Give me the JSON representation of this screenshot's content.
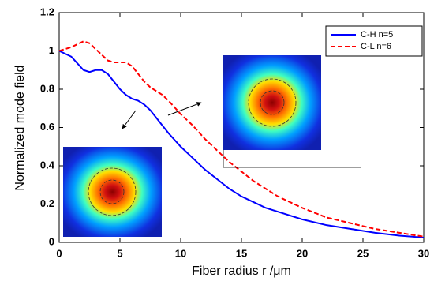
{
  "chart_data": {
    "type": "line",
    "xlabel": "Fiber radius r /μm",
    "ylabel": "Normalized mode field",
    "x": [
      0,
      1,
      2,
      2.5,
      3,
      3.5,
      4,
      4.5,
      5,
      5.5,
      6,
      6.5,
      7,
      7.5,
      8,
      8.5,
      9,
      10,
      11,
      12,
      13,
      14,
      15,
      16,
      17,
      18,
      20,
      22,
      24,
      26,
      28,
      30
    ],
    "series": [
      {
        "name": "C-H n=5",
        "color": "#0000ff",
        "dash": "solid",
        "values": [
          1,
          0.97,
          0.9,
          0.89,
          0.9,
          0.9,
          0.88,
          0.84,
          0.8,
          0.77,
          0.75,
          0.74,
          0.72,
          0.69,
          0.65,
          0.61,
          0.57,
          0.5,
          0.44,
          0.38,
          0.33,
          0.28,
          0.24,
          0.21,
          0.18,
          0.16,
          0.12,
          0.09,
          0.07,
          0.05,
          0.035,
          0.025
        ]
      },
      {
        "name": "C-L n=6",
        "color": "#ff0000",
        "dash": "dashed",
        "values": [
          1,
          1.02,
          1.05,
          1.04,
          1.01,
          0.98,
          0.95,
          0.94,
          0.94,
          0.94,
          0.92,
          0.88,
          0.84,
          0.81,
          0.79,
          0.77,
          0.74,
          0.67,
          0.61,
          0.54,
          0.48,
          0.42,
          0.37,
          0.32,
          0.28,
          0.24,
          0.18,
          0.13,
          0.1,
          0.07,
          0.05,
          0.03
        ]
      }
    ],
    "xlim": [
      0,
      30
    ],
    "xticks": [
      0,
      5,
      10,
      15,
      20,
      25,
      30
    ],
    "ylim": [
      0,
      1.2
    ],
    "yticks": [
      0,
      0.2,
      0.4,
      0.6,
      0.8,
      1,
      1.2
    ],
    "legend": "upper right"
  }
}
